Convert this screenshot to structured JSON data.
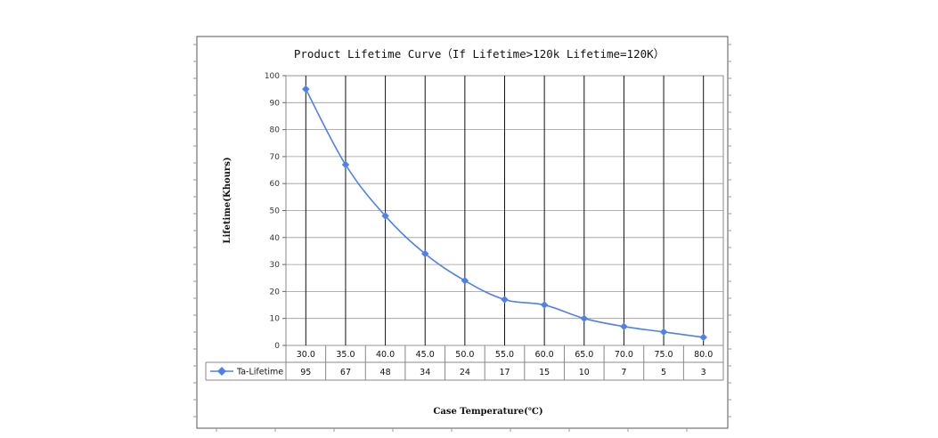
{
  "chart_data": {
    "type": "line",
    "title": "Product Lifetime Curve（If Lifetime>120k Lifetime=120K）",
    "xlabel": "Case Temperature(℃)",
    "ylabel": "Lifetime(Khours)",
    "ylim": [
      0,
      100
    ],
    "yticks": [
      "0",
      "10",
      "20",
      "30",
      "40",
      "50",
      "60",
      "70",
      "80",
      "90",
      "100"
    ],
    "categories": [
      "30.0",
      "35.0",
      "40.0",
      "45.0",
      "50.0",
      "55.0",
      "60.0",
      "65.0",
      "70.0",
      "75.0",
      "80.0"
    ],
    "series": [
      {
        "name": "Ta-Lifetime",
        "values": [
          95,
          67,
          48,
          34,
          24,
          17,
          15,
          10,
          7,
          5,
          3
        ],
        "table_labels": [
          "95",
          "67",
          "48",
          "34",
          "24",
          "17",
          "15",
          "10",
          "7",
          "5",
          "3"
        ],
        "color": "#4f81e8"
      }
    ],
    "grid": true,
    "legend": "data-table"
  }
}
